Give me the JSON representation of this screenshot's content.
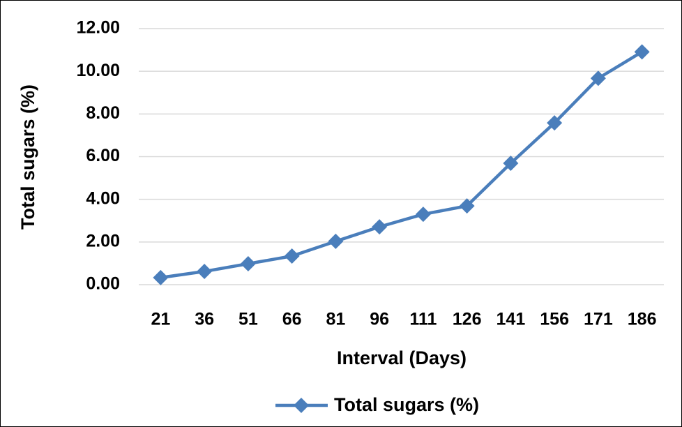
{
  "chart_data": {
    "type": "line",
    "x_label": "Interval (Days)",
    "y_label": "Total sugars (%)",
    "categories": [
      "21",
      "36",
      "51",
      "66",
      "81",
      "96",
      "111",
      "126",
      "141",
      "156",
      "171",
      "186"
    ],
    "series": [
      {
        "name": "Total sugars (%)",
        "color": "#4a7ebb",
        "values": [
          0.33,
          0.62,
          0.98,
          1.34,
          2.03,
          2.71,
          3.3,
          3.69,
          5.69,
          7.58,
          9.67,
          10.91
        ]
      }
    ],
    "ylim": [
      0,
      12
    ],
    "yticks": [
      {
        "value": 0,
        "label": "0.00"
      },
      {
        "value": 2,
        "label": "2.00"
      },
      {
        "value": 4,
        "label": "4.00"
      },
      {
        "value": 6,
        "label": "6.00"
      },
      {
        "value": 8,
        "label": "8.00"
      },
      {
        "value": 10,
        "label": "10.00"
      },
      {
        "value": 12,
        "label": "12.00"
      }
    ],
    "grid": true,
    "legend": "bottom"
  }
}
